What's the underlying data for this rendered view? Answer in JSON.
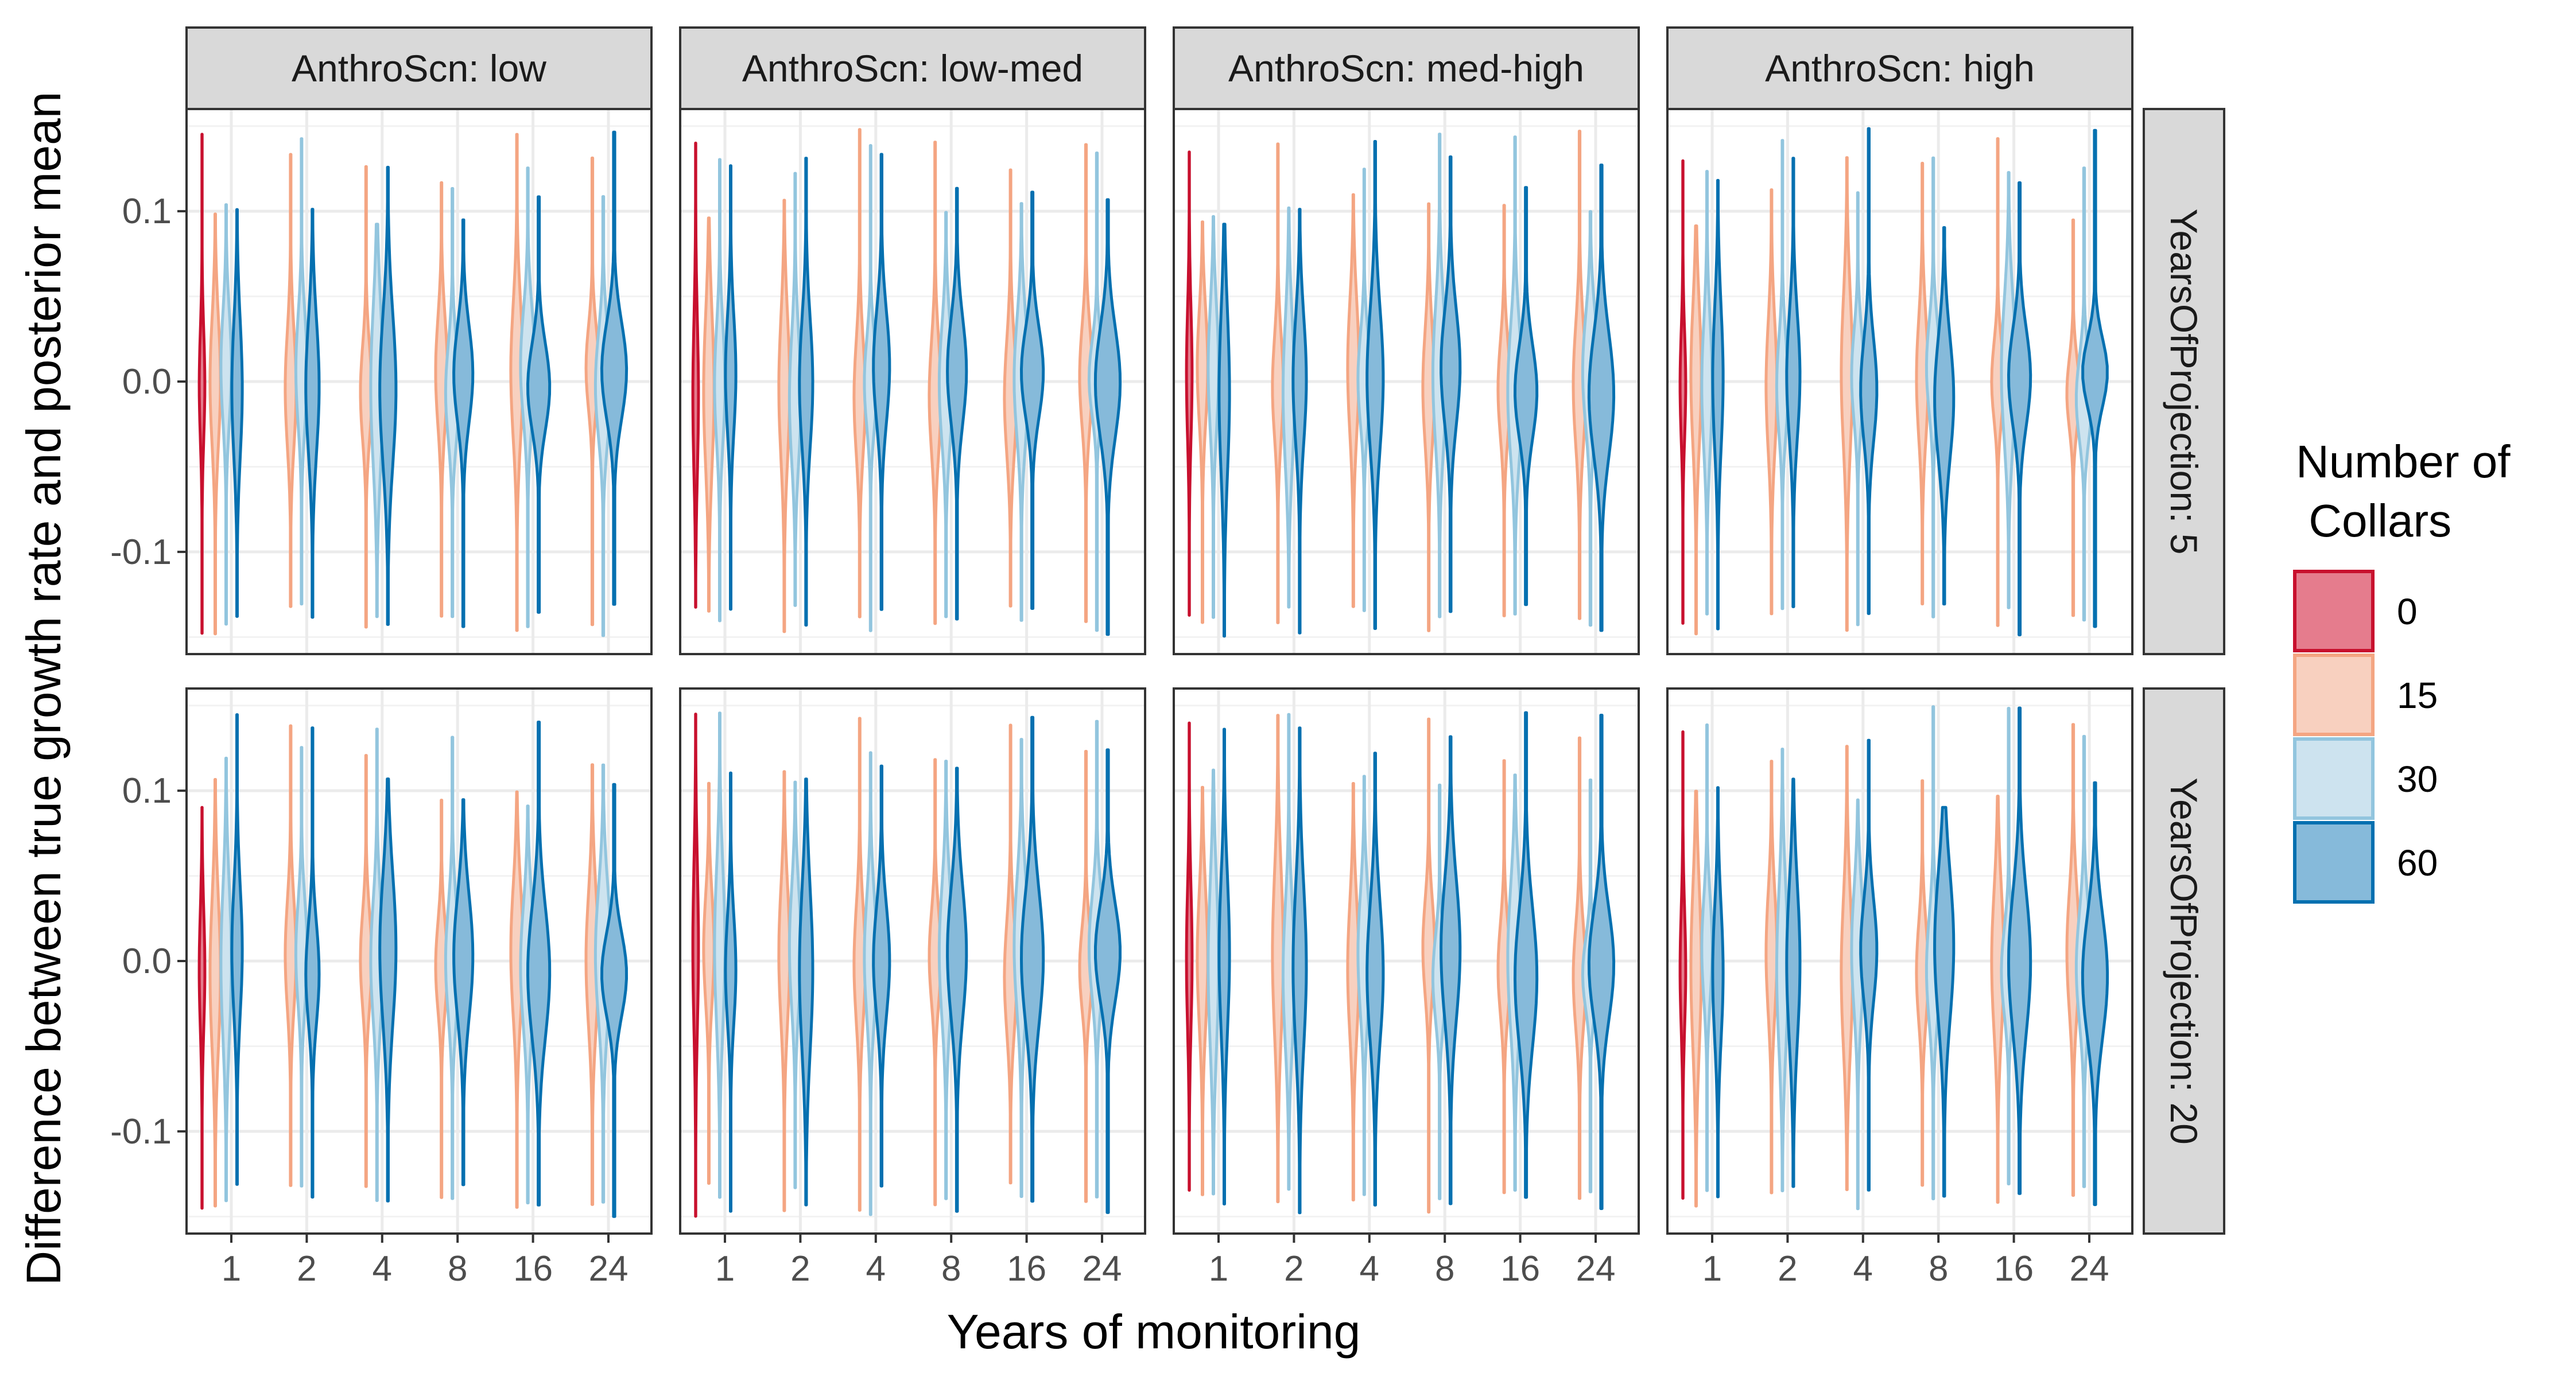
{
  "chart_data": {
    "type": "violin",
    "ylabel": "Difference between true growth rate and posterior mean",
    "xlabel": "Years of monitoring",
    "ylim": [
      -0.16,
      0.16
    ],
    "yticks": [
      {
        "value": -0.1,
        "label": "-0.1"
      },
      {
        "value": 0.0,
        "label": "0.0"
      },
      {
        "value": 0.1,
        "label": "0.1"
      }
    ],
    "years_of_monitoring": [
      "1",
      "2",
      "4",
      "8",
      "16",
      "24"
    ],
    "grid": true,
    "legend_position": "right",
    "column_facets": [
      "AnthroScn: low",
      "AnthroScn: low-med",
      "AnthroScn: med-high",
      "AnthroScn: high"
    ],
    "row_facets": [
      "YearsOfProjection: 5",
      "YearsOfProjection: 20"
    ],
    "legend": {
      "title_line1": "Number of",
      "title_line2": " Collars",
      "entries": [
        {
          "label": "0",
          "fill": "#e57c8d",
          "stroke": "#c8102e"
        },
        {
          "label": "15",
          "fill": "#f8d0bf",
          "stroke": "#f4a582"
        },
        {
          "label": "30",
          "fill": "#cde3ef",
          "stroke": "#92c5de"
        },
        {
          "label": "60",
          "fill": "#86bada",
          "stroke": "#0570b0"
        }
      ]
    },
    "violin_ranges_note": "each violin spans approximately -0.15 to 0.15 with center near 0.0; collars=0 only present at the first monitoring level"
  }
}
